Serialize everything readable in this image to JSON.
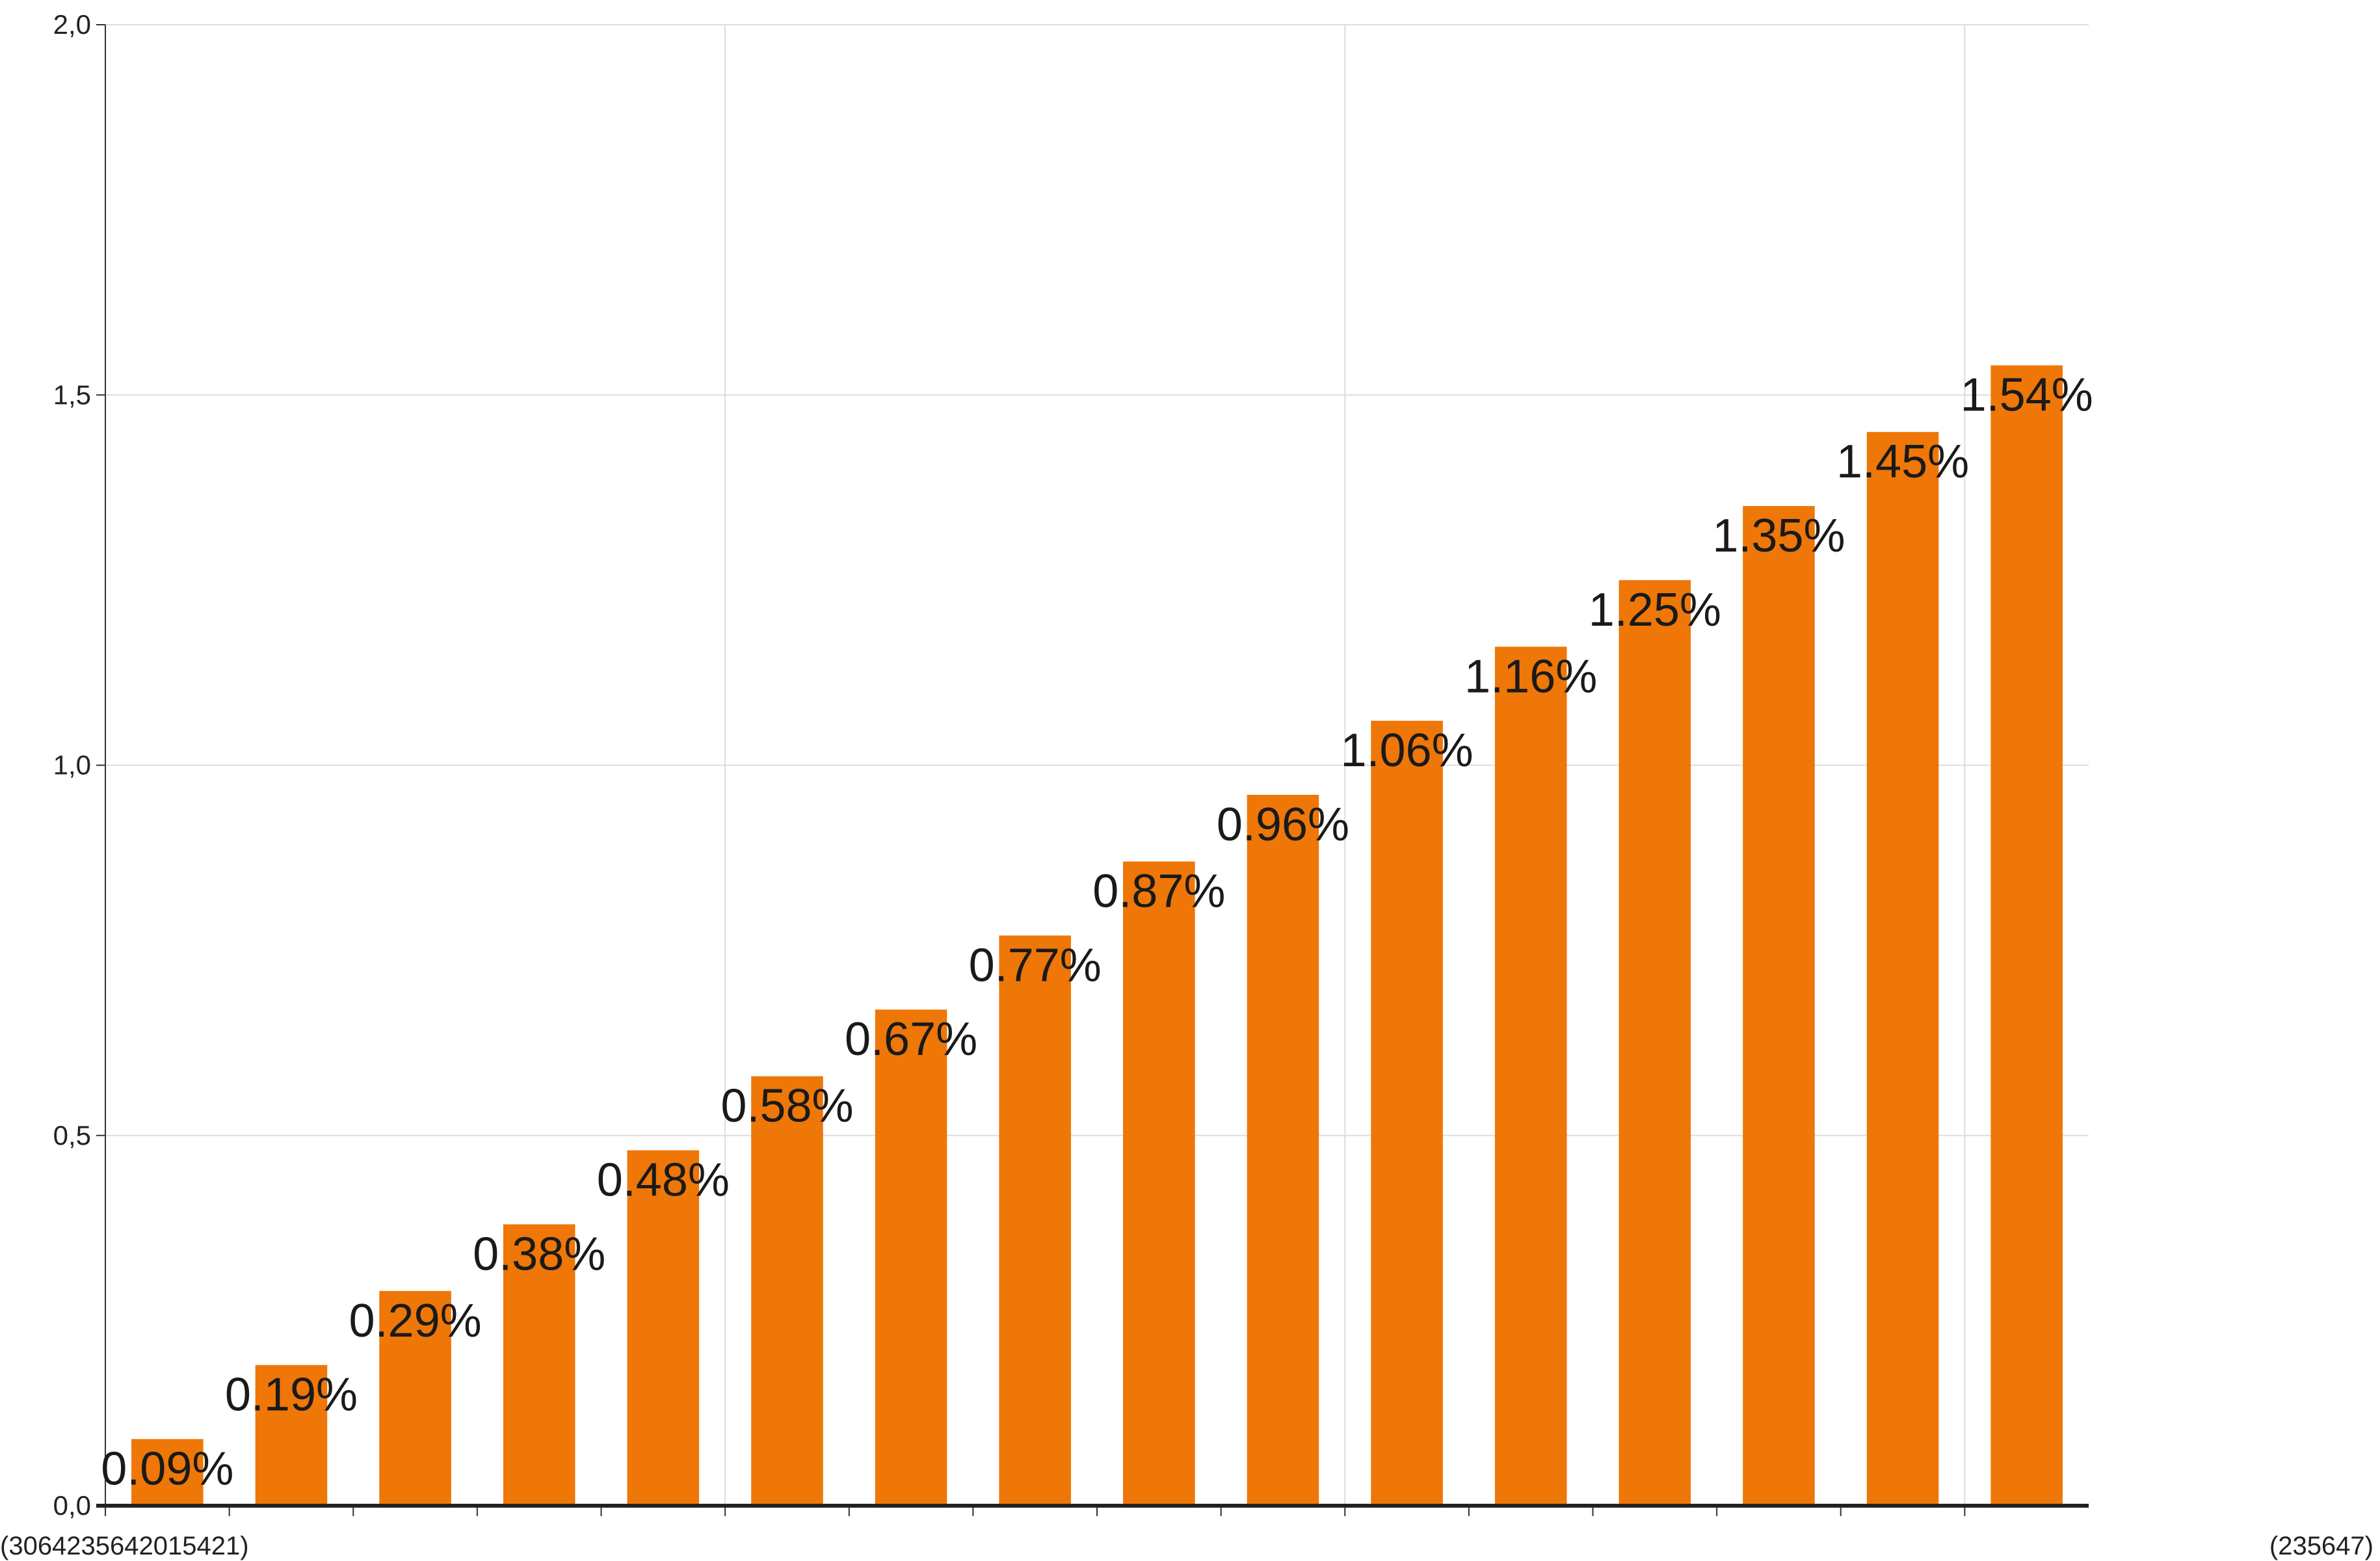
{
  "chart_data": {
    "type": "bar",
    "ylim": [
      0,
      2
    ],
    "y_ticks": [
      0,
      0.5,
      1,
      1.5,
      2
    ],
    "y_tick_labels": [
      "0,0",
      "0,5",
      "1,0",
      "1,5",
      "2,0"
    ],
    "grid": true,
    "bar_color": "#ee7708",
    "values": [
      0.09,
      0.19,
      0.29,
      0.38,
      0.48,
      0.58,
      0.67,
      0.77,
      0.87,
      0.96,
      1.06,
      1.16,
      1.25,
      1.35,
      1.45,
      1.54
    ],
    "data_labels": [
      "0.09%",
      "0.19%",
      "0.29%",
      "0.38%",
      "0.48%",
      "0.58%",
      "0.67%",
      "0.77%",
      "0.87%",
      "0.96%",
      "1.06%",
      "1.16%",
      "1.25%",
      "1.35%",
      "1.45%",
      "1.54%"
    ],
    "category_labels_visible": [
      "(3064235642015421)",
      "(235647)"
    ]
  }
}
